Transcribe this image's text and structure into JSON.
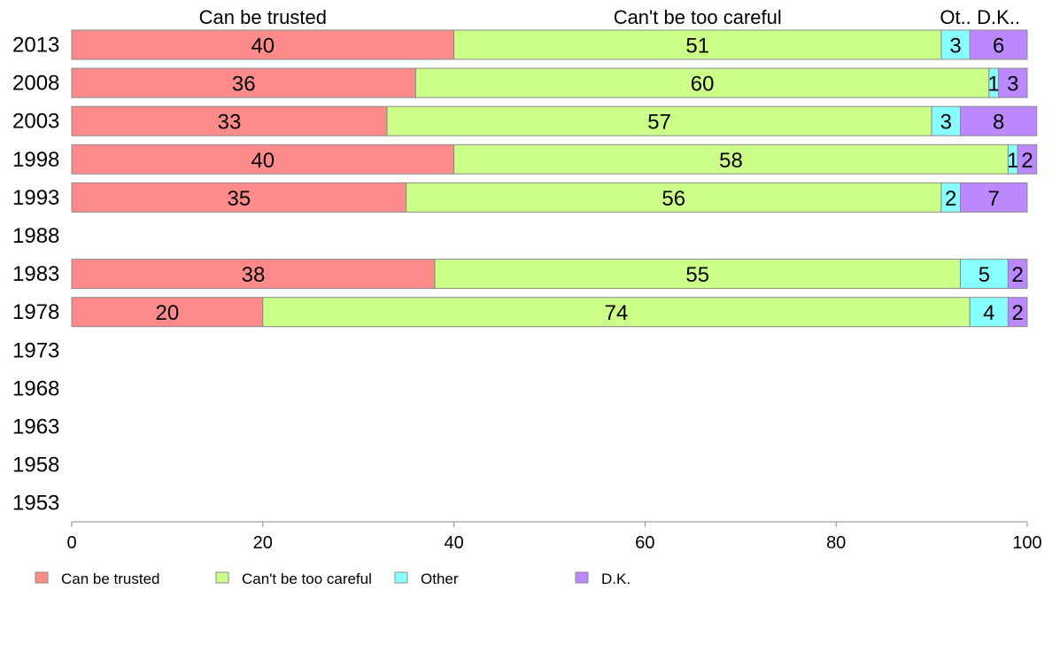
{
  "chart_data": {
    "type": "bar",
    "orientation": "horizontal",
    "stacked": true,
    "categories": [
      "2013",
      "2008",
      "2003",
      "1998",
      "1993",
      "1988",
      "1983",
      "1978",
      "1973",
      "1968",
      "1963",
      "1958",
      "1953"
    ],
    "series": [
      {
        "name": "Can be trusted",
        "color": "#ff8a8a",
        "values": [
          40,
          36,
          33,
          40,
          35,
          null,
          38,
          20,
          null,
          null,
          null,
          null,
          null
        ]
      },
      {
        "name": "Can't be too careful",
        "color": "#ccff88",
        "values": [
          51,
          60,
          57,
          58,
          56,
          null,
          55,
          74,
          null,
          null,
          null,
          null,
          null
        ]
      },
      {
        "name": "Other",
        "color": "#88ffff",
        "values": [
          3,
          1,
          3,
          1,
          2,
          null,
          5,
          4,
          null,
          null,
          null,
          null,
          null
        ]
      },
      {
        "name": "D.K.",
        "color": "#bb88ff",
        "values": [
          6,
          3,
          8,
          2,
          7,
          null,
          2,
          2,
          null,
          null,
          null,
          null,
          null
        ]
      }
    ],
    "top_labels": [
      "Can be trusted",
      "Can't be too careful",
      "Ot..",
      "D.K.."
    ],
    "xlim": [
      0,
      100
    ],
    "xticks": [
      "0",
      "20",
      "40",
      "60",
      "80",
      "100"
    ],
    "grid": false,
    "legend_position": "bottom"
  }
}
